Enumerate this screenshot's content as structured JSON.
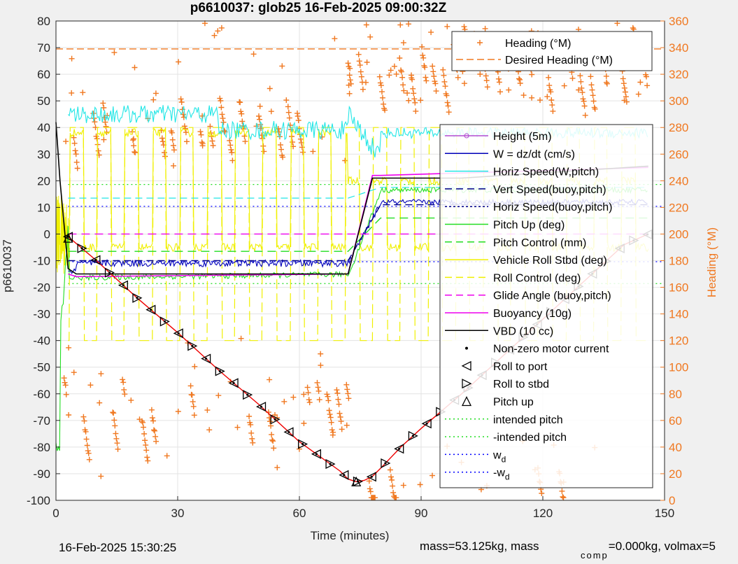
{
  "chart_data": {
    "type": "line",
    "title": "p6610037: glob25 16-Feb-2025 09:00:32Z",
    "xlabel": "Time (minutes)",
    "ylabel": "p6610037",
    "y2label": "Heading (°M)",
    "xlim": [
      0,
      150
    ],
    "ylim": [
      -100,
      80
    ],
    "y2lim": [
      0,
      360
    ],
    "grid": true,
    "x_ticks": [
      "0",
      "30",
      "60",
      "90",
      "120",
      "150"
    ],
    "y_ticks": [
      "80",
      "70",
      "60",
      "50",
      "40",
      "30",
      "20",
      "10",
      "0",
      "-10",
      "-20",
      "-30",
      "-40",
      "-50",
      "-60",
      "-70",
      "-80",
      "-90",
      "-100"
    ],
    "y2_ticks": [
      "360",
      "340",
      "320",
      "300",
      "280",
      "260",
      "240",
      "220",
      "200",
      "180",
      "160",
      "140",
      "120",
      "100",
      "80",
      "60",
      "40",
      "20",
      "0"
    ],
    "colors": {
      "height": "#b44bd0",
      "w": "#0000b8",
      "horiz_speed": "#22e6e6",
      "vert_speed_buoy": "#000088",
      "pitch": "#22dd22",
      "roll": "#f0f000",
      "glide": "#ee00ee",
      "vbd": "#000000",
      "depth": "#ee0000",
      "heading": "#f07820",
      "intended": "#22dd22",
      "wd": "#0000ff"
    },
    "legend_right": [
      {
        "label": "Height (5m)"
      },
      {
        "label": "W = dz/dt (cm/s)"
      },
      {
        "label": "Horiz Speed(W,pitch)"
      },
      {
        "label": "Vert Speed(buoy,pitch)"
      },
      {
        "label": "Horiz Speed(buoy,pitch)"
      },
      {
        "label": "Pitch Up (deg)"
      },
      {
        "label": "Pitch Control (mm)"
      },
      {
        "label": "Vehicle Roll Stbd (deg)"
      },
      {
        "label": "Roll Control (deg)"
      },
      {
        "label": "Glide Angle (buoy,pitch)"
      },
      {
        "label": "Buoyancy (10g)"
      },
      {
        "label": "VBD (10 cc)"
      },
      {
        "label": "Non-zero motor current"
      },
      {
        "label": "Roll to port"
      },
      {
        "label": "Roll to stbd"
      },
      {
        "label": "Pitch up"
      },
      {
        "label": "intended pitch"
      },
      {
        "label": "-intended pitch"
      },
      {
        "label": "w",
        "sub": "d"
      },
      {
        "label": "-w",
        "sub": "d"
      }
    ],
    "legend_heading": [
      {
        "label": "Heading (°M)"
      },
      {
        "label": "Desired Heading (°M)"
      }
    ],
    "series": {
      "depth_x": [
        3,
        10,
        20,
        30,
        40,
        50,
        60,
        70,
        72,
        74,
        76,
        78,
        80,
        85,
        90,
        100,
        110,
        120,
        130,
        140,
        146
      ],
      "depth_y": [
        -1,
        -10,
        -24,
        -37,
        -51,
        -64,
        -78,
        -89,
        -92,
        -93,
        -92.5,
        -91,
        -88,
        -80,
        -73,
        -60,
        -46,
        -32,
        -18,
        -4,
        0
      ],
      "vbd_x": [
        0,
        1,
        3,
        5,
        10,
        20,
        40,
        60,
        72,
        78,
        80,
        90,
        100,
        146
      ],
      "vbd_y": [
        42,
        20,
        -13,
        -15,
        -15,
        -15,
        -15,
        -15,
        -15,
        21,
        21,
        21,
        21,
        25.5
      ],
      "buoy_x": [
        3,
        5,
        72,
        78,
        80,
        146
      ],
      "buoy_y": [
        -15,
        -16,
        -15,
        22,
        22,
        25
      ],
      "pitch_control_x": [
        3,
        71,
        72,
        80,
        146
      ],
      "pitch_control_y": [
        -6.5,
        -6.5,
        -6.5,
        6,
        6
      ],
      "glide_x": [
        3,
        146
      ],
      "glide_y": [
        0,
        0
      ],
      "wd": 10.4,
      "intended_pitch": 18.6,
      "desired_heading": 339
    }
  },
  "footer": {
    "timestamp": "16-Feb-2025 15:30:25",
    "mass_text": "mass=53.125kg, mass",
    "comp_sub": "comp",
    "comp_text": "=0.000kg, volmax=5"
  }
}
